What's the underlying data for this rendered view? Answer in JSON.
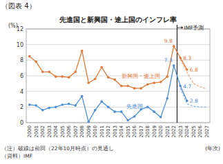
{
  "chart_data": {
    "type": "line",
    "figure_label": "（図表 4）",
    "title": "先進国と新興国・途上国のインフレ率",
    "y_label": "(%)",
    "x_label": "(年次)",
    "categories": [
      "2000",
      "2001",
      "2002",
      "2003",
      "2004",
      "2005",
      "2006",
      "2007",
      "2008",
      "2009",
      "2010",
      "2011",
      "2012",
      "2013",
      "2014",
      "2015",
      "2016",
      "2017",
      "2018",
      "2019",
      "2020",
      "2021",
      "2022",
      "2023",
      "2024",
      "2025",
      "2026",
      "2027"
    ],
    "ylim": [
      0,
      12
    ],
    "yticks": [
      0,
      2,
      4,
      6,
      8,
      10,
      12
    ],
    "grid": true,
    "series": [
      {
        "name": "新興国・途上国",
        "color": "#e07b39",
        "marker": "circle",
        "line_style": "solid",
        "values": [
          8.5,
          7.8,
          6.5,
          6.5,
          5.9,
          5.9,
          5.8,
          6.5,
          9.2,
          5.1,
          5.6,
          7.1,
          5.8,
          5.5,
          4.7,
          4.7,
          4.4,
          4.4,
          4.9,
          5.1,
          5.2,
          5.9,
          9.8,
          8.3,
          6.8,
          null,
          null,
          null
        ],
        "value_labels": [
          null,
          null,
          null,
          null,
          null,
          null,
          null,
          null,
          null,
          null,
          null,
          null,
          null,
          null,
          null,
          null,
          null,
          null,
          null,
          null,
          null,
          null,
          "9.8",
          "8.3",
          "6.8",
          null,
          null,
          null
        ]
      },
      {
        "name": "先進国",
        "color": "#4a8fd6",
        "marker": "circle",
        "line_style": "solid",
        "values": [
          2.3,
          2.2,
          1.6,
          1.9,
          2.0,
          2.3,
          2.4,
          2.2,
          3.4,
          0.1,
          1.6,
          2.7,
          2.0,
          1.4,
          1.4,
          0.3,
          0.8,
          1.7,
          2.0,
          1.4,
          0.7,
          3.1,
          7.3,
          4.7,
          2.8,
          null,
          null,
          null
        ],
        "value_labels": [
          null,
          null,
          null,
          null,
          null,
          null,
          null,
          null,
          null,
          null,
          null,
          null,
          null,
          null,
          null,
          null,
          null,
          null,
          null,
          null,
          null,
          null,
          "7.3",
          "4.7",
          "2.8",
          null,
          null,
          null
        ]
      },
      {
        "color": "#f0a878",
        "line_style": "dashed",
        "values": [
          null,
          null,
          null,
          null,
          null,
          null,
          null,
          null,
          null,
          null,
          null,
          null,
          null,
          null,
          null,
          null,
          null,
          null,
          null,
          null,
          null,
          null,
          null,
          8.1,
          6.5,
          5.0,
          4.6,
          4.3
        ]
      },
      {
        "color": "#8ab8e8",
        "line_style": "dashed",
        "values": [
          null,
          null,
          null,
          null,
          null,
          null,
          null,
          null,
          null,
          null,
          null,
          null,
          null,
          null,
          null,
          null,
          null,
          null,
          null,
          null,
          null,
          null,
          null,
          4.4,
          2.4,
          2.1,
          2.0,
          2.0
        ]
      }
    ],
    "annotations": [
      {
        "text": "IMF予測",
        "category": "2023"
      }
    ],
    "notes": [
      "（注）破線は前回（22年10月時点）の見通し",
      "（資料）IMF"
    ]
  }
}
